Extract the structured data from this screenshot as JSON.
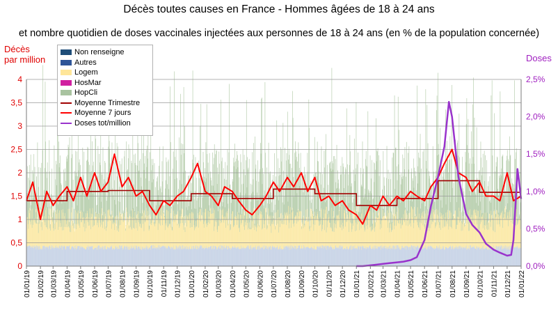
{
  "title": "Décès toutes causes en France - Hommes âgées de 18 à 24 ans",
  "subtitle": "et nombre quotidien de doses vaccinales injectées aux personnes de 18 à 24 ans (en % de la population concernée)",
  "chart_data": {
    "type": "bar",
    "title": "Décès toutes causes en France - Hommes âgées de 18 à 24 ans",
    "ylabel_left": "Décès par million",
    "ylabel_left_lines": [
      "Décès",
      "par million"
    ],
    "ylabel_right": "Doses",
    "ylim_left": [
      0,
      4
    ],
    "ylim_right": [
      0,
      2.5
    ],
    "y_ticks_left": [
      "0",
      "0,5",
      "1",
      "1,5",
      "2",
      "2,5",
      "3",
      "3,5",
      "4"
    ],
    "y_ticks_right": [
      "0,0%",
      "0,5%",
      "1,0%",
      "1,5%",
      "2,0%",
      "2,5%"
    ],
    "x_ticks": [
      "01/01/19",
      "01/02/19",
      "01/03/19",
      "01/04/19",
      "01/05/19",
      "01/06/19",
      "01/07/19",
      "01/08/19",
      "01/09/19",
      "01/10/19",
      "01/11/19",
      "01/12/19",
      "01/01/20",
      "01/02/20",
      "01/03/20",
      "01/04/20",
      "01/05/20",
      "01/06/20",
      "01/07/20",
      "01/08/20",
      "01/09/20",
      "01/10/20",
      "01/11/20",
      "01/12/20",
      "01/01/21",
      "01/02/21",
      "01/03/21",
      "01/04/21",
      "01/05/21",
      "01/06/21",
      "01/07/21",
      "01/08/21",
      "01/09/21",
      "01/10/21",
      "01/11/21",
      "01/12/21",
      "01/01/22"
    ],
    "legend_position": "top-left",
    "legend": [
      {
        "name": "Non renseigne",
        "kind": "bar",
        "color": "#1f4e79"
      },
      {
        "name": "Autres",
        "kind": "bar",
        "color": "#2f5597"
      },
      {
        "name": "Logem",
        "kind": "bar",
        "color": "#ffe699"
      },
      {
        "name": "HosMar",
        "kind": "bar",
        "color": "#d020a0"
      },
      {
        "name": "HopCli",
        "kind": "bar",
        "color": "#a9c3a0"
      },
      {
        "name": "Moyenne Trimestre",
        "kind": "line",
        "color": "#a00000"
      },
      {
        "name": "Moyenne 7 jours",
        "kind": "line",
        "color": "#ff0000"
      },
      {
        "name": "Doses tot/million",
        "kind": "line",
        "color": "#9933cc"
      }
    ],
    "quarterly_mean": {
      "name": "Moyenne Trimestre",
      "x": [
        "01/01/19",
        "01/04/19",
        "01/07/19",
        "01/10/19",
        "01/01/20",
        "01/04/20",
        "01/07/20",
        "01/10/20",
        "01/01/21",
        "01/04/21",
        "01/07/21",
        "01/10/21",
        "01/01/22"
      ],
      "values": [
        1.4,
        1.6,
        1.62,
        1.4,
        1.55,
        1.45,
        1.65,
        1.55,
        1.3,
        1.45,
        1.83,
        1.58,
        1.58
      ]
    },
    "moving_avg_7d": {
      "name": "Moyenne 7 jours",
      "x": [
        "01/01/19",
        "15/01/19",
        "01/02/19",
        "15/02/19",
        "01/03/19",
        "15/03/19",
        "01/04/19",
        "15/04/19",
        "01/05/19",
        "15/05/19",
        "01/06/19",
        "15/06/19",
        "01/07/19",
        "15/07/19",
        "01/08/19",
        "15/08/19",
        "01/09/19",
        "15/09/19",
        "01/10/19",
        "15/10/19",
        "01/11/19",
        "15/11/19",
        "01/12/19",
        "15/12/19",
        "01/01/20",
        "15/01/20",
        "01/02/20",
        "15/02/20",
        "01/03/20",
        "15/03/20",
        "01/04/20",
        "15/04/20",
        "01/05/20",
        "15/05/20",
        "01/06/20",
        "15/06/20",
        "01/07/20",
        "15/07/20",
        "01/08/20",
        "15/08/20",
        "01/09/20",
        "15/09/20",
        "01/10/20",
        "15/10/20",
        "01/11/20",
        "15/11/20",
        "01/12/20",
        "15/12/20",
        "01/01/21",
        "15/01/21",
        "01/02/21",
        "15/02/21",
        "01/03/21",
        "15/03/21",
        "01/04/21",
        "15/04/21",
        "01/05/21",
        "15/05/21",
        "01/06/21",
        "15/06/21",
        "01/07/21",
        "15/07/21",
        "01/08/21",
        "15/08/21",
        "01/09/21",
        "15/09/21",
        "01/10/21",
        "15/10/21",
        "01/11/21",
        "15/11/21",
        "01/12/21",
        "15/12/21",
        "01/01/22"
      ],
      "values": [
        1.4,
        1.8,
        1.0,
        1.6,
        1.3,
        1.5,
        1.7,
        1.4,
        1.9,
        1.5,
        2.0,
        1.6,
        1.8,
        2.4,
        1.7,
        1.9,
        1.5,
        1.6,
        1.3,
        1.1,
        1.4,
        1.3,
        1.5,
        1.6,
        1.9,
        2.2,
        1.6,
        1.5,
        1.3,
        1.7,
        1.6,
        1.4,
        1.2,
        1.1,
        1.3,
        1.5,
        1.8,
        1.6,
        1.9,
        1.7,
        2.0,
        1.6,
        1.9,
        1.4,
        1.5,
        1.3,
        1.4,
        1.2,
        1.1,
        0.9,
        1.3,
        1.2,
        1.5,
        1.3,
        1.5,
        1.4,
        1.6,
        1.5,
        1.4,
        1.7,
        1.9,
        2.2,
        2.5,
        2.0,
        1.9,
        1.6,
        1.8,
        1.5,
        1.5,
        1.4,
        2.0,
        1.4,
        1.5
      ]
    },
    "doses_tot_million": {
      "name": "Doses tot/million",
      "x": [
        "01/01/21",
        "15/01/21",
        "01/02/21",
        "15/02/21",
        "01/03/21",
        "15/03/21",
        "01/04/21",
        "15/04/21",
        "01/05/21",
        "15/05/21",
        "01/06/21",
        "15/06/21",
        "01/07/21",
        "15/07/21",
        "25/07/21",
        "01/08/21",
        "15/08/21",
        "01/09/21",
        "15/09/21",
        "01/10/21",
        "15/10/21",
        "01/11/21",
        "15/11/21",
        "01/12/21",
        "10/12/21",
        "15/12/21",
        "24/12/21",
        "01/01/22"
      ],
      "values": [
        0.0,
        0.0,
        0.01,
        0.02,
        0.03,
        0.04,
        0.05,
        0.06,
        0.08,
        0.12,
        0.35,
        0.8,
        1.2,
        1.6,
        2.2,
        2.0,
        1.2,
        0.7,
        0.55,
        0.45,
        0.3,
        0.22,
        0.18,
        0.14,
        0.15,
        0.35,
        1.3,
        0.9
      ]
    },
    "daily_bars_shown": true,
    "grid": "horizontal"
  }
}
